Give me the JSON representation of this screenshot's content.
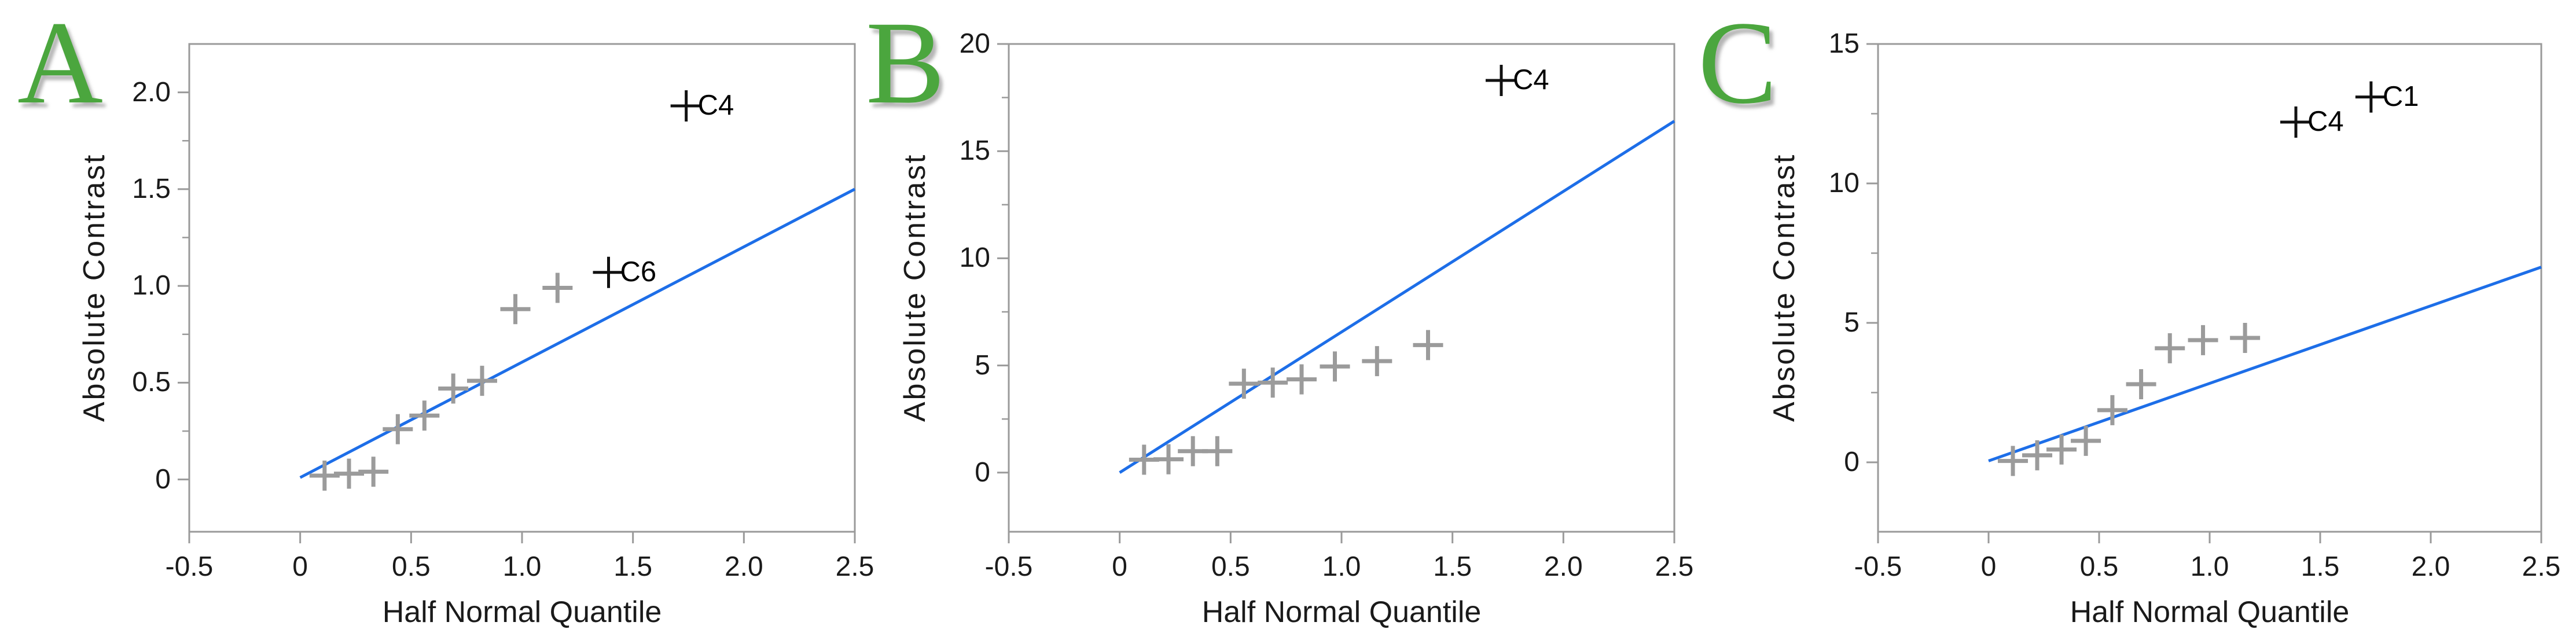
{
  "figure": {
    "background": "#ffffff",
    "panel_letters": [
      "A",
      "B",
      "C"
    ]
  },
  "colors": {
    "letter_green": "#4ba63e",
    "fit_line_blue": "#1d6ee8",
    "point_gray": "#9b9b9b",
    "labeled_point_black": "#111111",
    "axis_gray": "#9a9a9a",
    "text_black": "#1a1a1a"
  },
  "chart_data": [
    {
      "type": "scatter",
      "panel_letter": "A",
      "xlabel": "Half Normal Quantile",
      "ylabel": "Absolute Contrast",
      "xlim": [
        -0.5,
        2.5
      ],
      "ylim": [
        -0.27,
        2.25
      ],
      "x_ticks": [
        -0.5,
        0,
        0.5,
        1.0,
        1.5,
        2.0,
        2.5
      ],
      "x_tick_labels": [
        "-0.5",
        "0",
        "0.5",
        "1.0",
        "1.5",
        "2.0",
        "2.5"
      ],
      "y_ticks": [
        0,
        0.5,
        1.0,
        1.5,
        2.0
      ],
      "y_tick_labels": [
        "0",
        "0.5",
        "1.0",
        "1.5",
        "2.0"
      ],
      "y_minor_ticks": [
        0.25,
        0.75,
        1.25,
        1.75
      ],
      "grid": false,
      "points": [
        {
          "x": 0.11,
          "y": 0.02
        },
        {
          "x": 0.22,
          "y": 0.03
        },
        {
          "x": 0.33,
          "y": 0.04
        },
        {
          "x": 0.44,
          "y": 0.26
        },
        {
          "x": 0.56,
          "y": 0.33
        },
        {
          "x": 0.69,
          "y": 0.47
        },
        {
          "x": 0.82,
          "y": 0.51
        },
        {
          "x": 0.97,
          "y": 0.88
        },
        {
          "x": 1.16,
          "y": 0.99
        }
      ],
      "labeled_points": [
        {
          "x": 1.39,
          "y": 1.07,
          "label": "C6"
        },
        {
          "x": 1.74,
          "y": 1.93,
          "label": "C4"
        }
      ],
      "fit_line": {
        "x1": 0,
        "y1": 0.01,
        "x2": 2.5,
        "y2": 1.5
      }
    },
    {
      "type": "scatter",
      "panel_letter": "B",
      "xlabel": "Half Normal Quantile",
      "ylabel": "Absolute Contrast",
      "xlim": [
        -0.5,
        2.5
      ],
      "ylim": [
        -2.76,
        20
      ],
      "x_ticks": [
        -0.5,
        0,
        0.5,
        1.0,
        1.5,
        2.0,
        2.5
      ],
      "x_tick_labels": [
        "-0.5",
        "0",
        "0.5",
        "1.0",
        "1.5",
        "2.0",
        "2.5"
      ],
      "y_ticks": [
        0,
        5,
        10,
        15,
        20
      ],
      "y_tick_labels": [
        "0",
        "5",
        "10",
        "15",
        "20"
      ],
      "y_minor_ticks": [
        2.5,
        7.5,
        12.5,
        17.5
      ],
      "grid": false,
      "points": [
        {
          "x": 0.11,
          "y": 0.6
        },
        {
          "x": 0.22,
          "y": 0.62
        },
        {
          "x": 0.33,
          "y": 1.0
        },
        {
          "x": 0.44,
          "y": 1.0
        },
        {
          "x": 0.56,
          "y": 4.15
        },
        {
          "x": 0.69,
          "y": 4.2
        },
        {
          "x": 0.82,
          "y": 4.35
        },
        {
          "x": 0.97,
          "y": 4.95
        },
        {
          "x": 1.16,
          "y": 5.2
        },
        {
          "x": 1.39,
          "y": 5.95
        }
      ],
      "labeled_points": [
        {
          "x": 1.72,
          "y": 18.3,
          "label": "C4"
        }
      ],
      "fit_line": {
        "x1": 0,
        "y1": 0.0,
        "x2": 2.5,
        "y2": 16.4
      }
    },
    {
      "type": "scatter",
      "panel_letter": "C",
      "xlabel": "Half Normal Quantile",
      "ylabel": "Absolute Contrast",
      "xlim": [
        -0.5,
        2.5
      ],
      "ylim": [
        -2.49,
        15
      ],
      "x_ticks": [
        -0.5,
        0,
        0.5,
        1.0,
        1.5,
        2.0,
        2.5
      ],
      "x_tick_labels": [
        "-0.5",
        "0",
        "0.5",
        "1.0",
        "1.5",
        "2.0",
        "2.5"
      ],
      "y_ticks": [
        0,
        5,
        10,
        15
      ],
      "y_tick_labels": [
        "0",
        "5",
        "10",
        "15"
      ],
      "y_minor_ticks": [
        2.5,
        7.5,
        12.5
      ],
      "grid": false,
      "points": [
        {
          "x": 0.11,
          "y": 0.05
        },
        {
          "x": 0.22,
          "y": 0.25
        },
        {
          "x": 0.33,
          "y": 0.46
        },
        {
          "x": 0.44,
          "y": 0.77
        },
        {
          "x": 0.56,
          "y": 1.87
        },
        {
          "x": 0.69,
          "y": 2.8
        },
        {
          "x": 0.82,
          "y": 4.09
        },
        {
          "x": 0.97,
          "y": 4.38
        },
        {
          "x": 1.16,
          "y": 4.46
        }
      ],
      "labeled_points": [
        {
          "x": 1.39,
          "y": 12.2,
          "label": "C4"
        },
        {
          "x": 1.73,
          "y": 13.1,
          "label": "C1"
        }
      ],
      "fit_line": {
        "x1": 0,
        "y1": 0.05,
        "x2": 2.5,
        "y2": 7.0
      }
    }
  ]
}
